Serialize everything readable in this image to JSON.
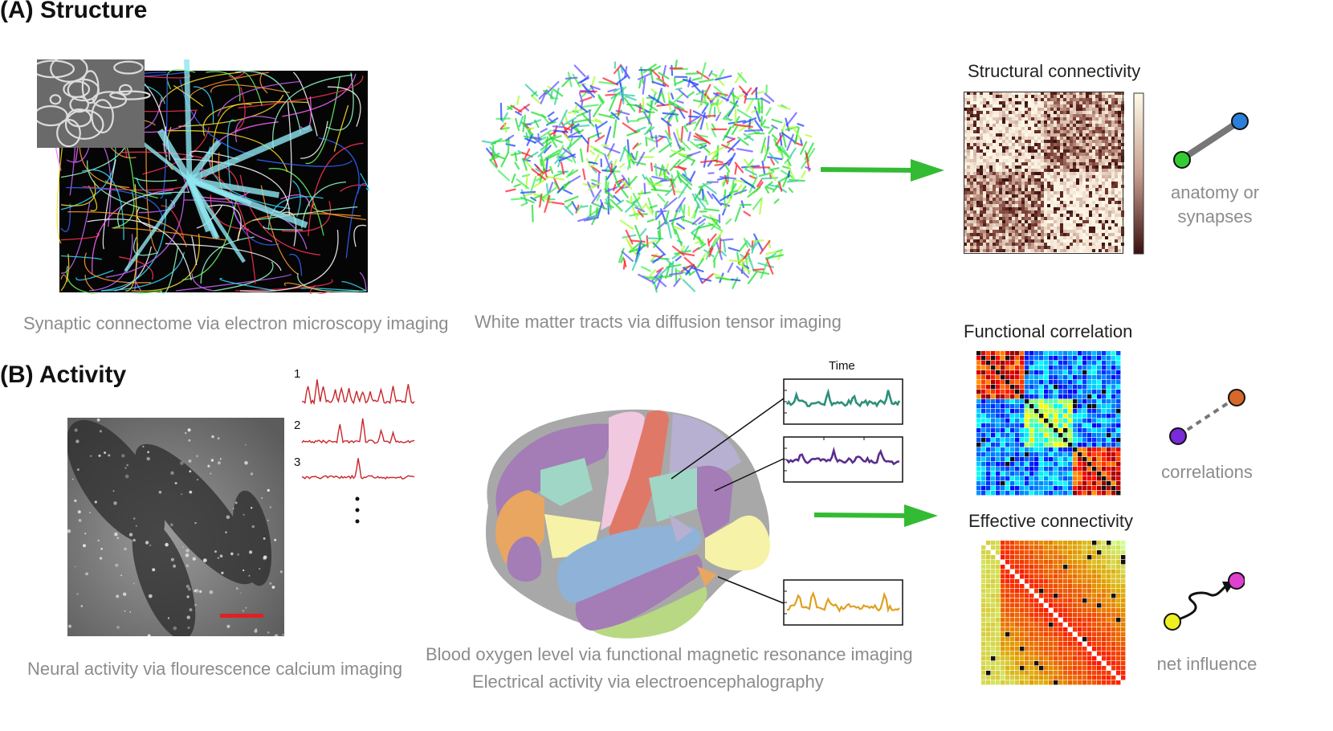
{
  "sections": {
    "structure": "(A) Structure",
    "activity": "(B) Activity"
  },
  "captions": {
    "em": "Synaptic connectome via electron microscopy imaging",
    "dti": "White matter tracts via diffusion tensor imaging",
    "calcium": "Neural activity via flourescence calcium imaging",
    "fmri": "Blood oxygen level via functional magnetic resonance imaging",
    "eeg": "Electrical activity via electroencephalography"
  },
  "matrices": {
    "structural": "Structural connectivity",
    "functional": "Functional correlation",
    "effective": "Effective connectivity"
  },
  "edges": {
    "structural_line1": "anatomy or",
    "structural_line2": "synapses",
    "functional": "correlations",
    "effective": "net influence"
  },
  "traces": {
    "labels": [
      "1",
      "2",
      "3"
    ],
    "time_label": "Time"
  },
  "colors": {
    "arrow": "#33bb33",
    "trace_red": "#c8262a",
    "trace_teal": "#2e8f7a",
    "trace_purple": "#5b2d8e",
    "trace_orange": "#e0a020",
    "node_green": "#33cc33",
    "node_blue": "#2a7fd8",
    "node_orange": "#d8682a",
    "node_purple": "#7a2ad8",
    "node_magenta": "#e040d0",
    "node_yellow": "#f0f020",
    "scale_bar": "#dd2222"
  }
}
